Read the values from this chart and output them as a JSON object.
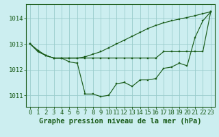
{
  "title": "Graphe pression niveau de la mer (hPa)",
  "bg_color": "#cceef0",
  "grid_color": "#99cccc",
  "line_color": "#1a5c1a",
  "x_values": [
    0,
    1,
    2,
    3,
    4,
    5,
    6,
    7,
    8,
    9,
    10,
    11,
    12,
    13,
    14,
    15,
    16,
    17,
    18,
    19,
    20,
    21,
    22,
    23
  ],
  "series1": [
    1013.0,
    1012.75,
    1012.55,
    1012.45,
    1012.45,
    1012.3,
    1012.25,
    1011.05,
    1011.05,
    1010.95,
    1011.0,
    1011.45,
    1011.5,
    1011.35,
    1011.6,
    1011.6,
    1011.65,
    1012.05,
    1012.1,
    1012.25,
    1012.15,
    1013.25,
    1013.9,
    1014.25
  ],
  "series2": [
    1013.0,
    1012.7,
    1012.55,
    1012.45,
    1012.45,
    1012.45,
    1012.45,
    1012.45,
    1012.45,
    1012.45,
    1012.45,
    1012.45,
    1012.45,
    1012.45,
    1012.45,
    1012.45,
    1012.45,
    1012.7,
    1012.7,
    1012.7,
    1012.7,
    1012.7,
    1012.7,
    1014.25
  ],
  "series3": [
    1013.0,
    1012.7,
    1012.55,
    1012.45,
    1012.45,
    1012.45,
    1012.45,
    1012.5,
    1012.6,
    1012.7,
    1012.85,
    1013.0,
    1013.15,
    1013.3,
    1013.45,
    1013.6,
    1013.72,
    1013.82,
    1013.9,
    1013.97,
    1014.03,
    1014.1,
    1014.18,
    1014.25
  ],
  "ylim_min": 1010.55,
  "ylim_max": 1014.55,
  "yticks": [
    1011,
    1012,
    1013,
    1014
  ],
  "tick_fontsize": 6.5,
  "title_fontsize": 7.5
}
